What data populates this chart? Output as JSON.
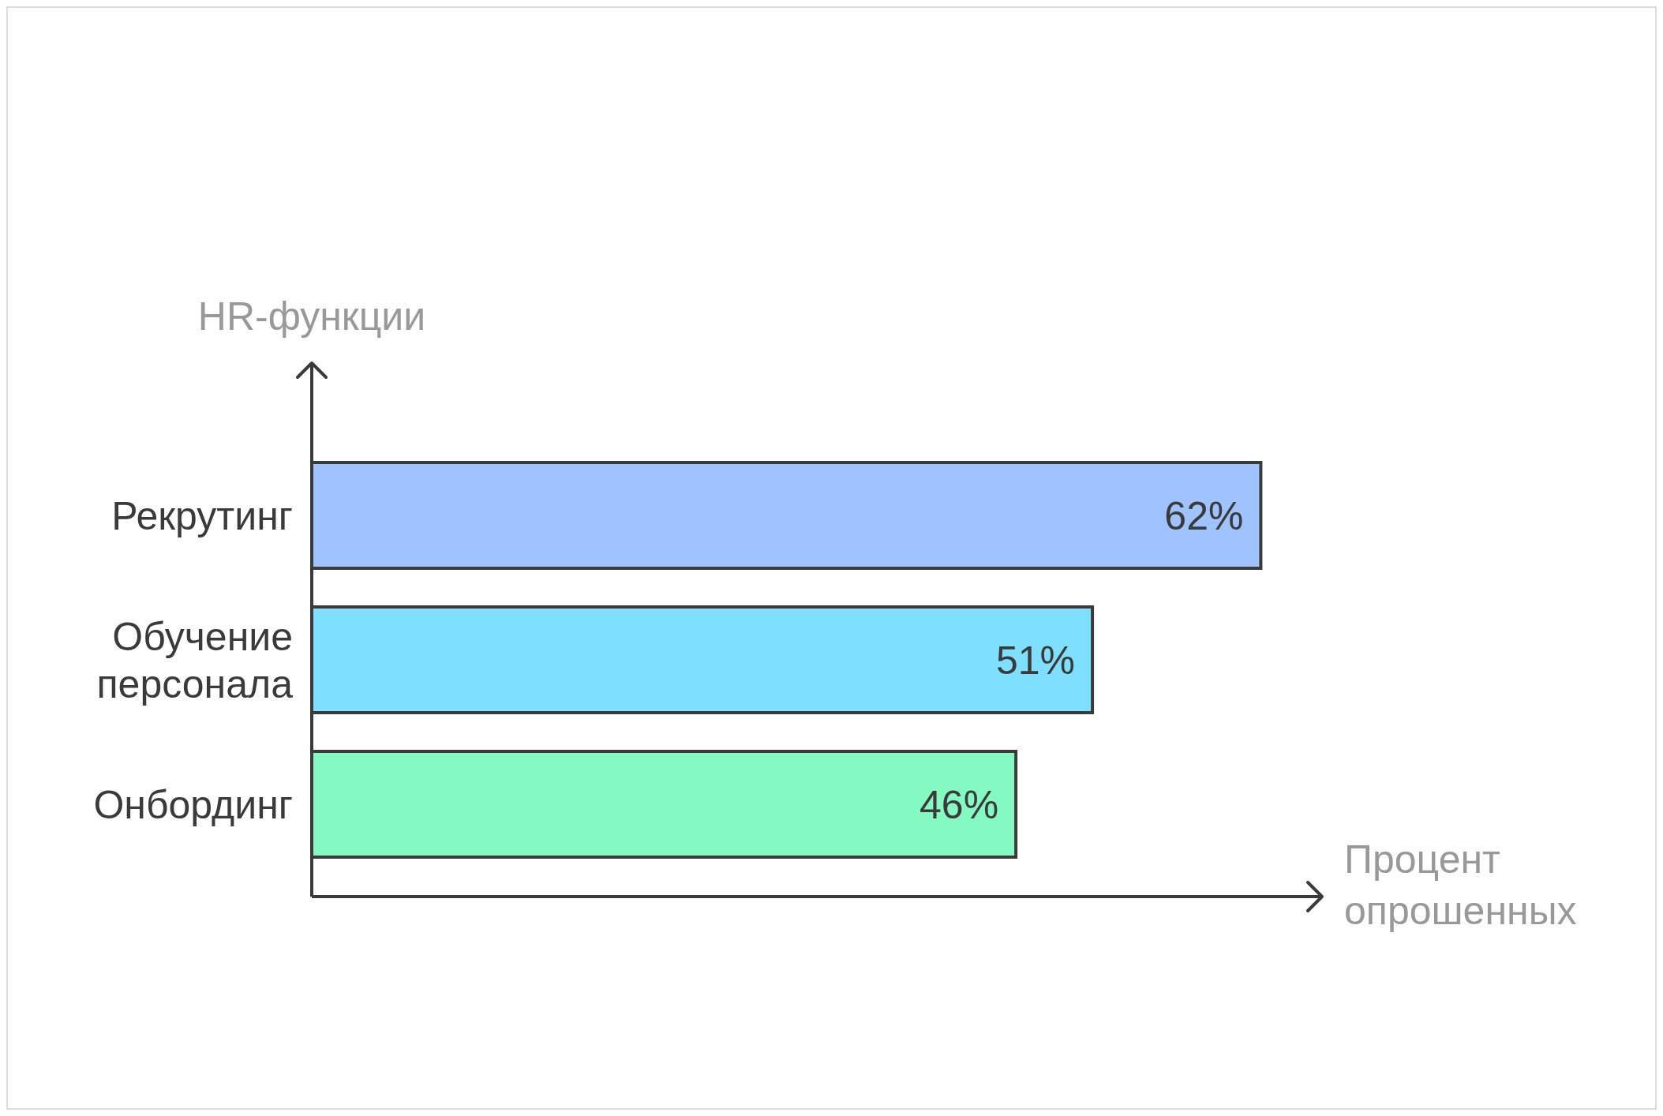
{
  "chart_data": {
    "type": "bar",
    "orientation": "horizontal",
    "ylabel": "HR-функции",
    "xlabel": "Процент опрошенных",
    "categories": [
      "Рекрутинг",
      "Обучение персонала",
      "Онбординг"
    ],
    "values": [
      62,
      51,
      46
    ],
    "colors": [
      "#9ec3ff",
      "#7fdfff",
      "#84f9c2"
    ],
    "value_labels": [
      "62%",
      "51%",
      "46%"
    ],
    "xlim": [
      0,
      66
    ]
  }
}
